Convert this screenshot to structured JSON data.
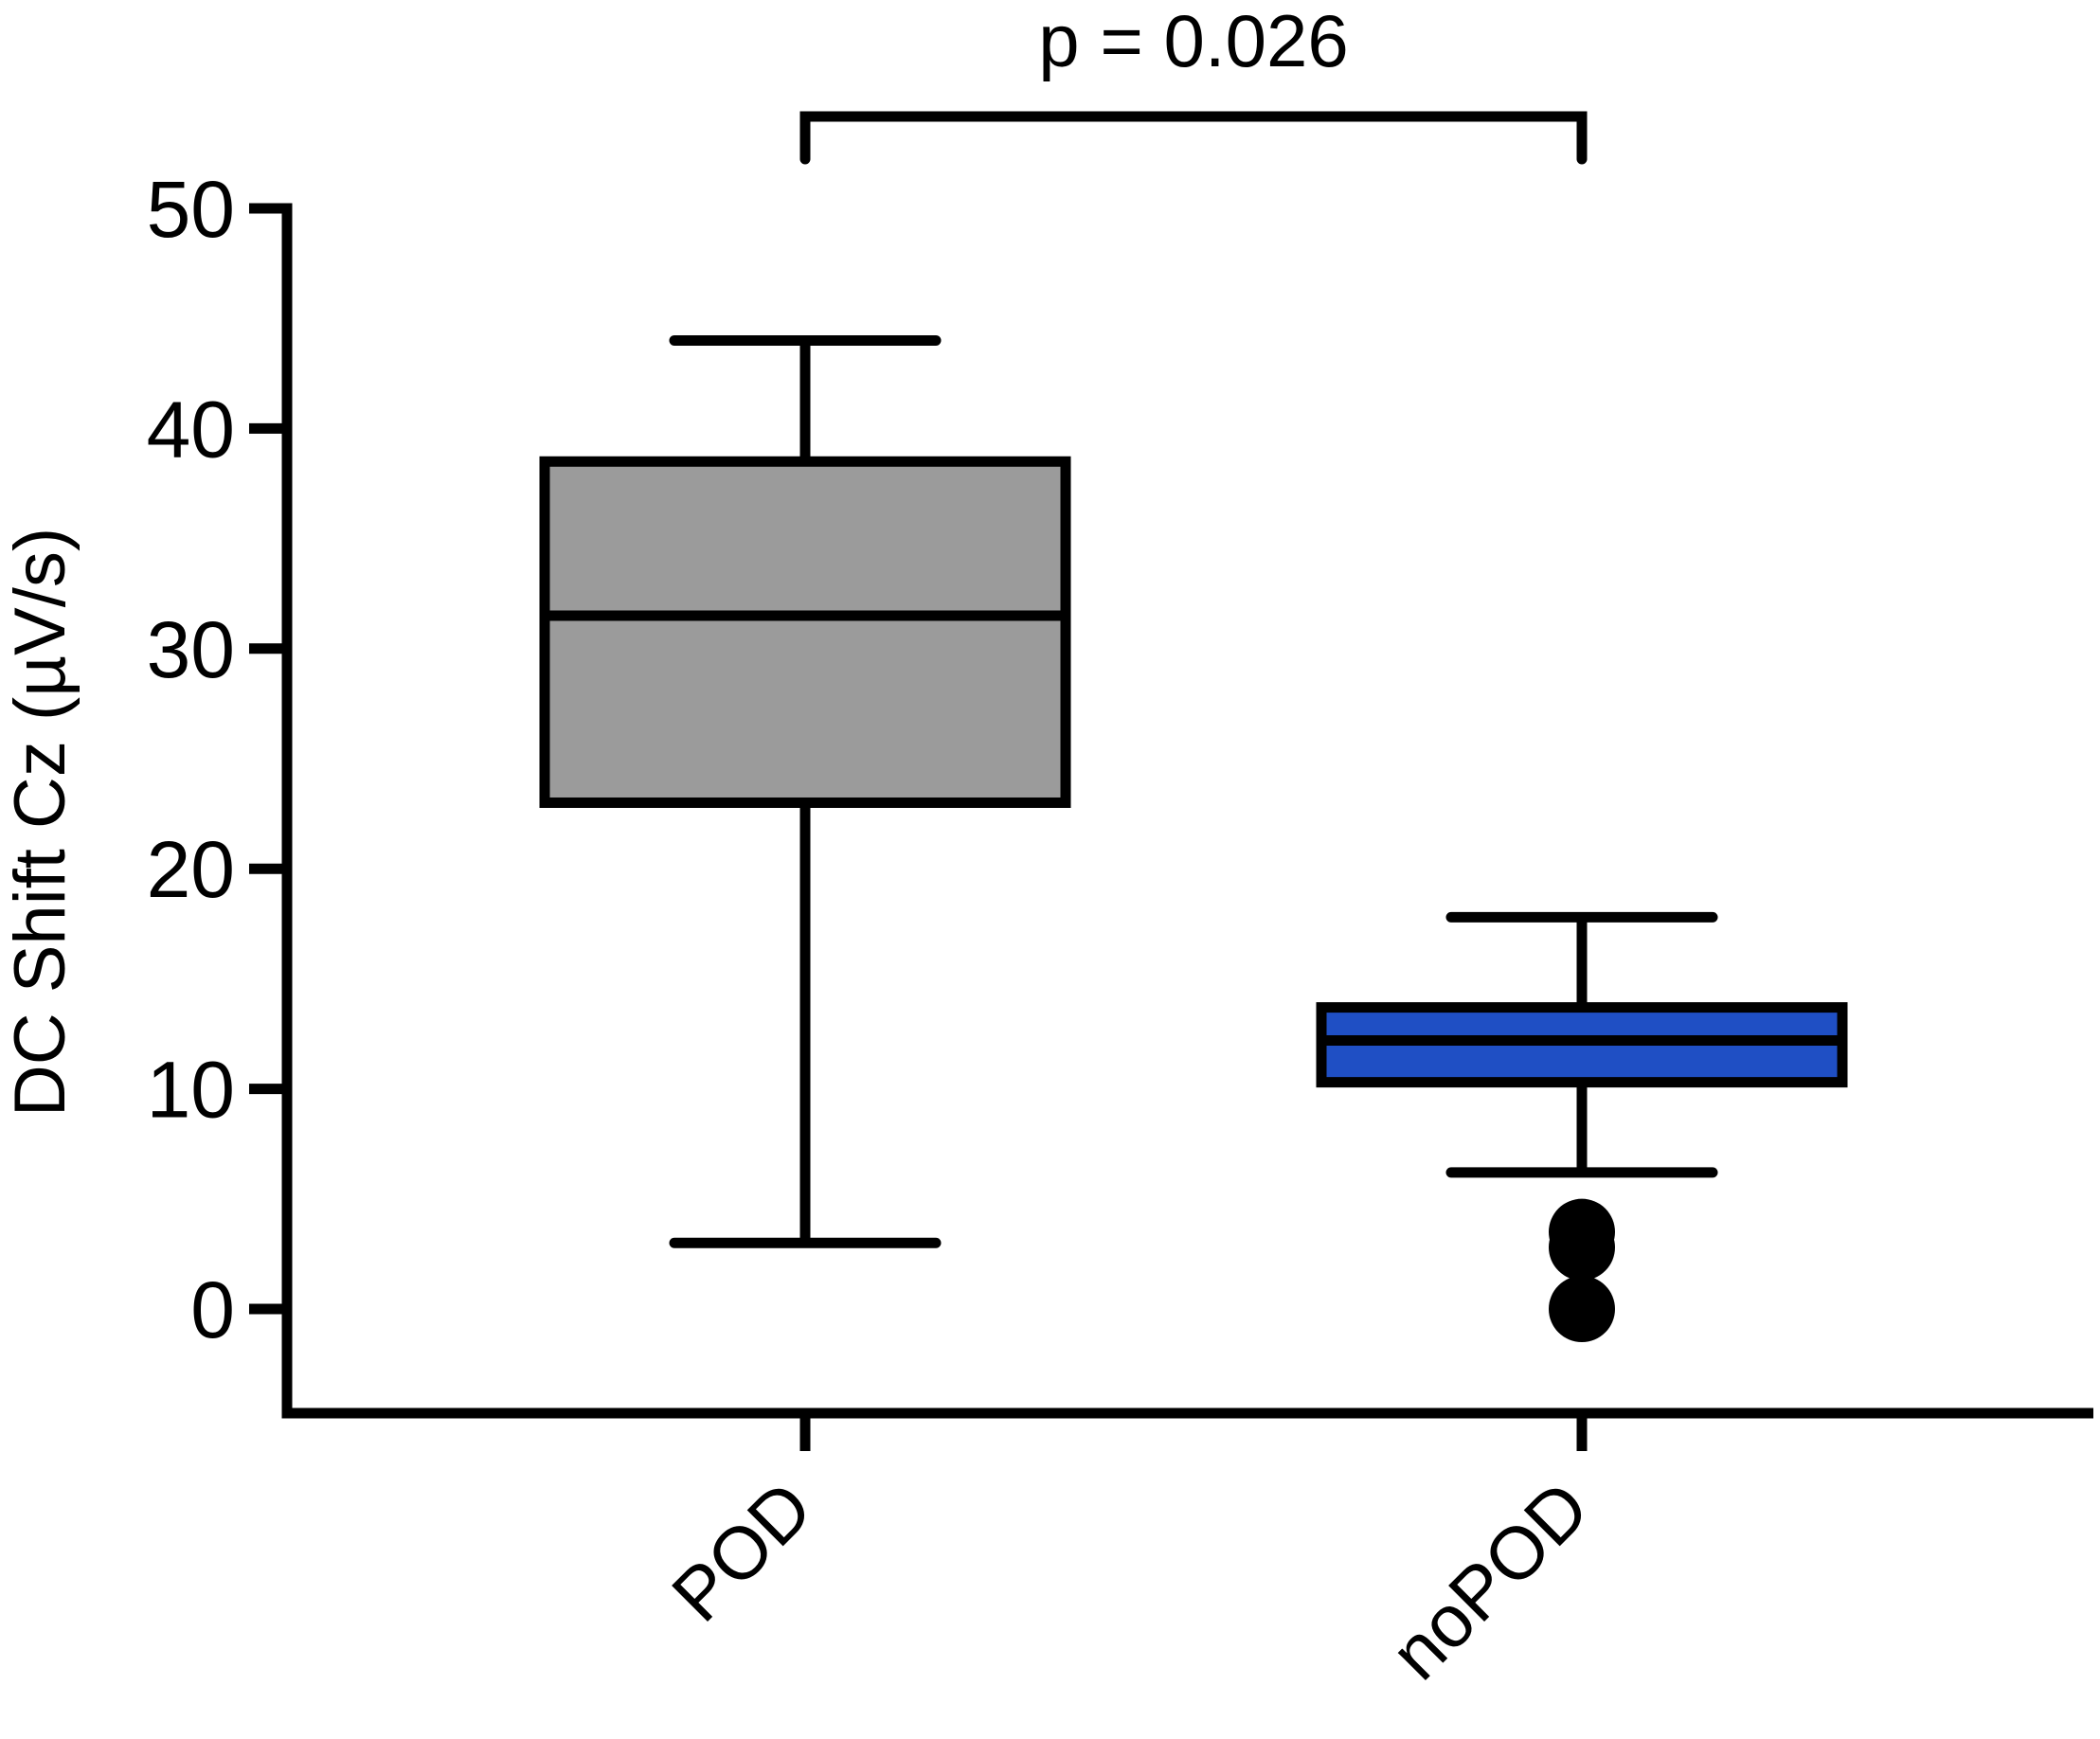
{
  "chart_data": {
    "type": "box",
    "title": "",
    "xlabel": "",
    "ylabel": "DC Shift Cz (µV/s)",
    "ylim": [
      -5,
      50
    ],
    "yticks": [
      0,
      10,
      20,
      30,
      40,
      50
    ],
    "grid": false,
    "categories": [
      "POD",
      "noPOD"
    ],
    "series": [
      {
        "category": "POD",
        "whisker_low": 3,
        "q1": 23,
        "median": 31.5,
        "q3": 38.5,
        "whisker_high": 44,
        "outliers": [],
        "color": "#9b9b9b"
      },
      {
        "category": "noPOD",
        "whisker_low": 6.2,
        "q1": 10.3,
        "median": 12.2,
        "q3": 13.7,
        "whisker_high": 17.8,
        "outliers": [
          3.5,
          2.8,
          0
        ],
        "color": "#1f4fc4"
      }
    ],
    "annotations": [
      {
        "text": "p = 0.026",
        "between": [
          "POD",
          "noPOD"
        ]
      }
    ]
  }
}
